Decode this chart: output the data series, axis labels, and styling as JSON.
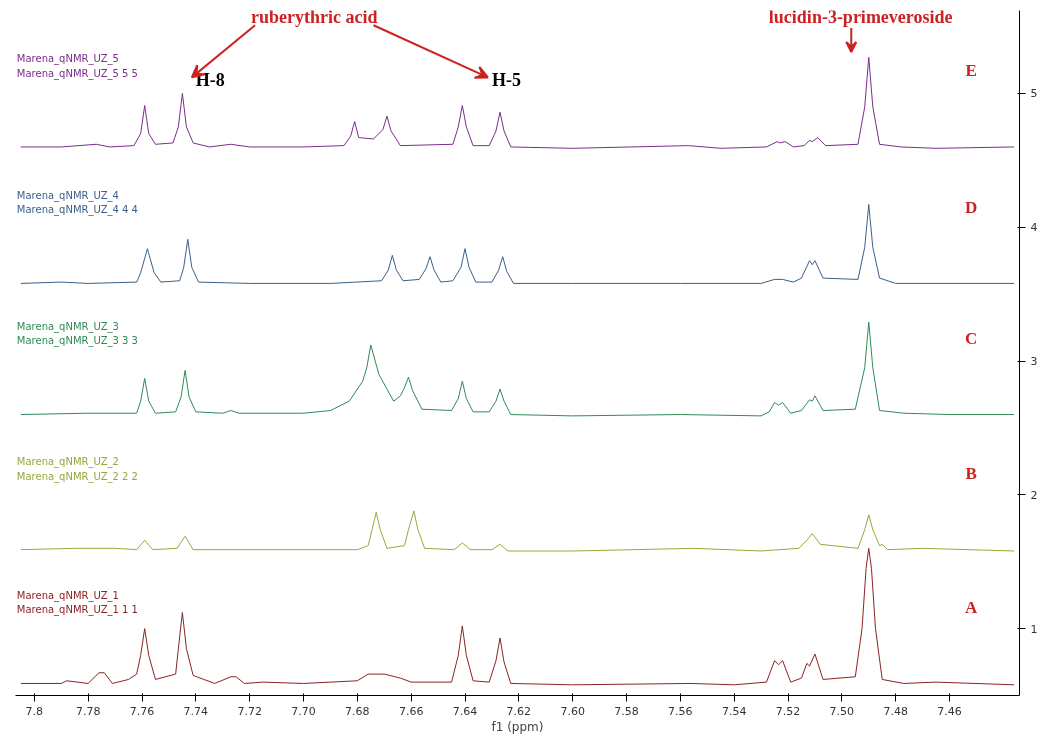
{
  "chart_data": {
    "type": "line",
    "xlabel": "f1 (ppm)",
    "xlim": [
      7.807,
      7.434
    ],
    "ylim": [
      0.5,
      5.62
    ],
    "xticks": [
      7.8,
      {
        "value": 7.78,
        "label": "7.78"
      },
      {
        "value": 7.76,
        "label": "7.76"
      },
      {
        "value": 7.74,
        "label": "7.74"
      },
      {
        "value": 7.72,
        "label": "7.72"
      },
      {
        "value": 7.7,
        "label": "7.70"
      },
      {
        "value": 7.68,
        "label": "7.68"
      },
      {
        "value": 7.66,
        "label": "7.66"
      },
      {
        "value": 7.64,
        "label": "7.64"
      },
      {
        "value": 7.62,
        "label": "7.62"
      },
      {
        "value": 7.6,
        "label": "7.60"
      },
      {
        "value": 7.58,
        "label": "7.58"
      },
      {
        "value": 7.56,
        "label": "7.56"
      },
      {
        "value": 7.54,
        "label": "7.54"
      },
      {
        "value": 7.52,
        "label": "7.52"
      },
      {
        "value": 7.5,
        "label": "7.50"
      },
      {
        "value": 7.48,
        "label": "7.48"
      },
      {
        "value": 7.46,
        "label": "7.46"
      }
    ],
    "yticks": [
      1,
      2,
      3,
      4,
      5
    ],
    "grid": false,
    "marker": "none",
    "line_style": "solid",
    "series": [
      {
        "name": "Marena_qNMR_UZ_5\nMarena_qNMR_UZ_5 5 5",
        "color": "#7b2d8e",
        "x": [
          7.805,
          7.79,
          7.777,
          7.772,
          7.763,
          7.7605,
          7.759,
          7.7575,
          7.755,
          7.7485,
          7.7465,
          7.745,
          7.7435,
          7.741,
          7.735,
          7.727,
          7.72,
          7.7,
          7.685,
          7.6825,
          7.681,
          7.6795,
          7.674,
          7.6705,
          7.669,
          7.6675,
          7.664,
          7.6445,
          7.6425,
          7.641,
          7.6395,
          7.637,
          7.631,
          7.6285,
          7.627,
          7.6255,
          7.623,
          7.6,
          7.557,
          7.545,
          7.528,
          7.524,
          7.523,
          7.521,
          7.518,
          7.514,
          7.512,
          7.511,
          7.509,
          7.506,
          7.494,
          7.4915,
          7.49,
          7.4885,
          7.486,
          7.478,
          7.465,
          7.436
        ],
        "values": [
          4.6,
          4.6,
          4.62,
          4.6,
          4.61,
          4.7,
          4.91,
          4.7,
          4.62,
          4.63,
          4.75,
          5.0,
          4.75,
          4.63,
          4.6,
          4.62,
          4.6,
          4.6,
          4.61,
          4.68,
          4.79,
          4.67,
          4.66,
          4.73,
          4.83,
          4.72,
          4.61,
          4.62,
          4.75,
          4.91,
          4.75,
          4.61,
          4.61,
          4.72,
          4.86,
          4.72,
          4.6,
          4.59,
          4.61,
          4.59,
          4.6,
          4.64,
          4.63,
          4.64,
          4.6,
          4.61,
          4.65,
          4.64,
          4.67,
          4.61,
          4.62,
          4.9,
          5.27,
          4.9,
          4.62,
          4.6,
          4.59,
          4.6
        ]
      },
      {
        "name": "Marena_qNMR_UZ_4\nMarena_qNMR_UZ_4 4 4",
        "color": "#3b5f8a",
        "x": [
          7.805,
          7.79,
          7.78,
          7.762,
          7.7605,
          7.758,
          7.7555,
          7.753,
          7.746,
          7.7445,
          7.743,
          7.7415,
          7.739,
          7.72,
          7.69,
          7.671,
          7.6685,
          7.667,
          7.6655,
          7.663,
          7.657,
          7.6545,
          7.653,
          7.6515,
          7.649,
          7.6445,
          7.6415,
          7.64,
          7.6385,
          7.636,
          7.63,
          7.6275,
          7.626,
          7.6245,
          7.622,
          7.6,
          7.56,
          7.53,
          7.525,
          7.522,
          7.518,
          7.515,
          7.512,
          7.511,
          7.51,
          7.507,
          7.494,
          7.4915,
          7.49,
          7.4885,
          7.486,
          7.48,
          7.436
        ],
        "values": [
          3.58,
          3.59,
          3.58,
          3.59,
          3.66,
          3.84,
          3.66,
          3.59,
          3.6,
          3.7,
          3.91,
          3.7,
          3.59,
          3.58,
          3.58,
          3.6,
          3.68,
          3.79,
          3.68,
          3.6,
          3.61,
          3.69,
          3.78,
          3.68,
          3.59,
          3.6,
          3.7,
          3.84,
          3.7,
          3.59,
          3.59,
          3.68,
          3.78,
          3.67,
          3.58,
          3.58,
          3.58,
          3.58,
          3.61,
          3.61,
          3.59,
          3.62,
          3.75,
          3.72,
          3.75,
          3.62,
          3.61,
          3.85,
          4.17,
          3.85,
          3.62,
          3.58,
          3.58
        ]
      },
      {
        "name": "Marena_qNMR_UZ_3\nMarena_qNMR_UZ_3 3 3",
        "color": "#2e8b57",
        "x": [
          7.805,
          7.78,
          7.762,
          7.7605,
          7.759,
          7.7575,
          7.755,
          7.7475,
          7.7455,
          7.744,
          7.7425,
          7.74,
          7.73,
          7.727,
          7.724,
          7.7,
          7.69,
          7.683,
          7.678,
          7.6765,
          7.675,
          7.672,
          7.6665,
          7.664,
          7.6625,
          7.661,
          7.6595,
          7.656,
          7.645,
          7.6425,
          7.641,
          7.6395,
          7.637,
          7.631,
          7.6285,
          7.627,
          7.6255,
          7.623,
          7.6,
          7.56,
          7.53,
          7.527,
          7.525,
          7.5235,
          7.522,
          7.519,
          7.515,
          7.512,
          7.511,
          7.51,
          7.507,
          7.495,
          7.4915,
          7.49,
          7.4885,
          7.486,
          7.477,
          7.46,
          7.436
        ],
        "values": [
          2.6,
          2.61,
          2.61,
          2.7,
          2.87,
          2.7,
          2.61,
          2.62,
          2.73,
          2.93,
          2.73,
          2.62,
          2.61,
          2.63,
          2.61,
          2.61,
          2.63,
          2.7,
          2.85,
          2.95,
          3.12,
          2.9,
          2.7,
          2.74,
          2.8,
          2.88,
          2.78,
          2.64,
          2.63,
          2.72,
          2.85,
          2.72,
          2.62,
          2.62,
          2.7,
          2.79,
          2.7,
          2.6,
          2.59,
          2.6,
          2.59,
          2.62,
          2.69,
          2.67,
          2.69,
          2.61,
          2.63,
          2.71,
          2.7,
          2.74,
          2.63,
          2.64,
          2.95,
          3.29,
          2.95,
          2.63,
          2.61,
          2.6,
          2.6
        ]
      },
      {
        "name": "Marena_qNMR_UZ_2\nMarena_qNMR_UZ_2 2 2",
        "color": "#9aa63a",
        "x": [
          7.805,
          7.785,
          7.77,
          7.762,
          7.759,
          7.756,
          7.747,
          7.744,
          7.741,
          7.7,
          7.68,
          7.676,
          7.6745,
          7.673,
          7.6715,
          7.669,
          7.6625,
          7.661,
          7.659,
          7.6575,
          7.655,
          7.644,
          7.641,
          7.638,
          7.63,
          7.627,
          7.624,
          7.6,
          7.555,
          7.53,
          7.516,
          7.513,
          7.511,
          7.508,
          7.494,
          7.4915,
          7.49,
          7.4885,
          7.486,
          7.485,
          7.483,
          7.47,
          7.436
        ],
        "values": [
          1.59,
          1.6,
          1.6,
          1.59,
          1.66,
          1.59,
          1.6,
          1.69,
          1.59,
          1.59,
          1.59,
          1.62,
          1.74,
          1.87,
          1.74,
          1.6,
          1.62,
          1.74,
          1.88,
          1.74,
          1.6,
          1.59,
          1.64,
          1.59,
          1.59,
          1.63,
          1.58,
          1.58,
          1.6,
          1.58,
          1.6,
          1.66,
          1.71,
          1.63,
          1.6,
          1.74,
          1.85,
          1.74,
          1.62,
          1.63,
          1.59,
          1.6,
          1.58
        ]
      },
      {
        "name": "Marena_qNMR_UZ_1\nMarena_qNMR_UZ_1 1 1",
        "color": "#8b2323",
        "x": [
          7.805,
          7.79,
          7.788,
          7.78,
          7.776,
          7.774,
          7.771,
          7.765,
          7.762,
          7.7605,
          7.759,
          7.7575,
          7.755,
          7.7475,
          7.7465,
          7.745,
          7.7435,
          7.741,
          7.737,
          7.733,
          7.727,
          7.725,
          7.722,
          7.715,
          7.7,
          7.68,
          7.676,
          7.67,
          7.664,
          7.66,
          7.645,
          7.6425,
          7.641,
          7.6395,
          7.637,
          7.631,
          7.6285,
          7.627,
          7.6255,
          7.623,
          7.6,
          7.556,
          7.54,
          7.528,
          7.525,
          7.5235,
          7.522,
          7.519,
          7.515,
          7.513,
          7.512,
          7.51,
          7.507,
          7.495,
          7.4925,
          7.491,
          7.49,
          7.489,
          7.4875,
          7.485,
          7.477,
          7.465,
          7.436
        ],
        "values": [
          0.59,
          0.59,
          0.61,
          0.59,
          0.67,
          0.67,
          0.59,
          0.62,
          0.66,
          0.8,
          1.0,
          0.8,
          0.62,
          0.66,
          0.85,
          1.12,
          0.85,
          0.65,
          0.62,
          0.59,
          0.64,
          0.64,
          0.59,
          0.6,
          0.59,
          0.61,
          0.66,
          0.66,
          0.63,
          0.6,
          0.6,
          0.8,
          1.02,
          0.8,
          0.61,
          0.6,
          0.76,
          0.93,
          0.75,
          0.59,
          0.58,
          0.59,
          0.58,
          0.6,
          0.76,
          0.73,
          0.76,
          0.6,
          0.63,
          0.74,
          0.72,
          0.81,
          0.62,
          0.64,
          1.0,
          1.45,
          1.6,
          1.45,
          1.0,
          0.62,
          0.59,
          0.6,
          0.58
        ]
      }
    ],
    "annotations": [
      "ruberythric acid",
      "H-8",
      "H-5",
      "lucidin-3-primeveroside",
      "E",
      "D",
      "C",
      "B",
      "A"
    ]
  }
}
